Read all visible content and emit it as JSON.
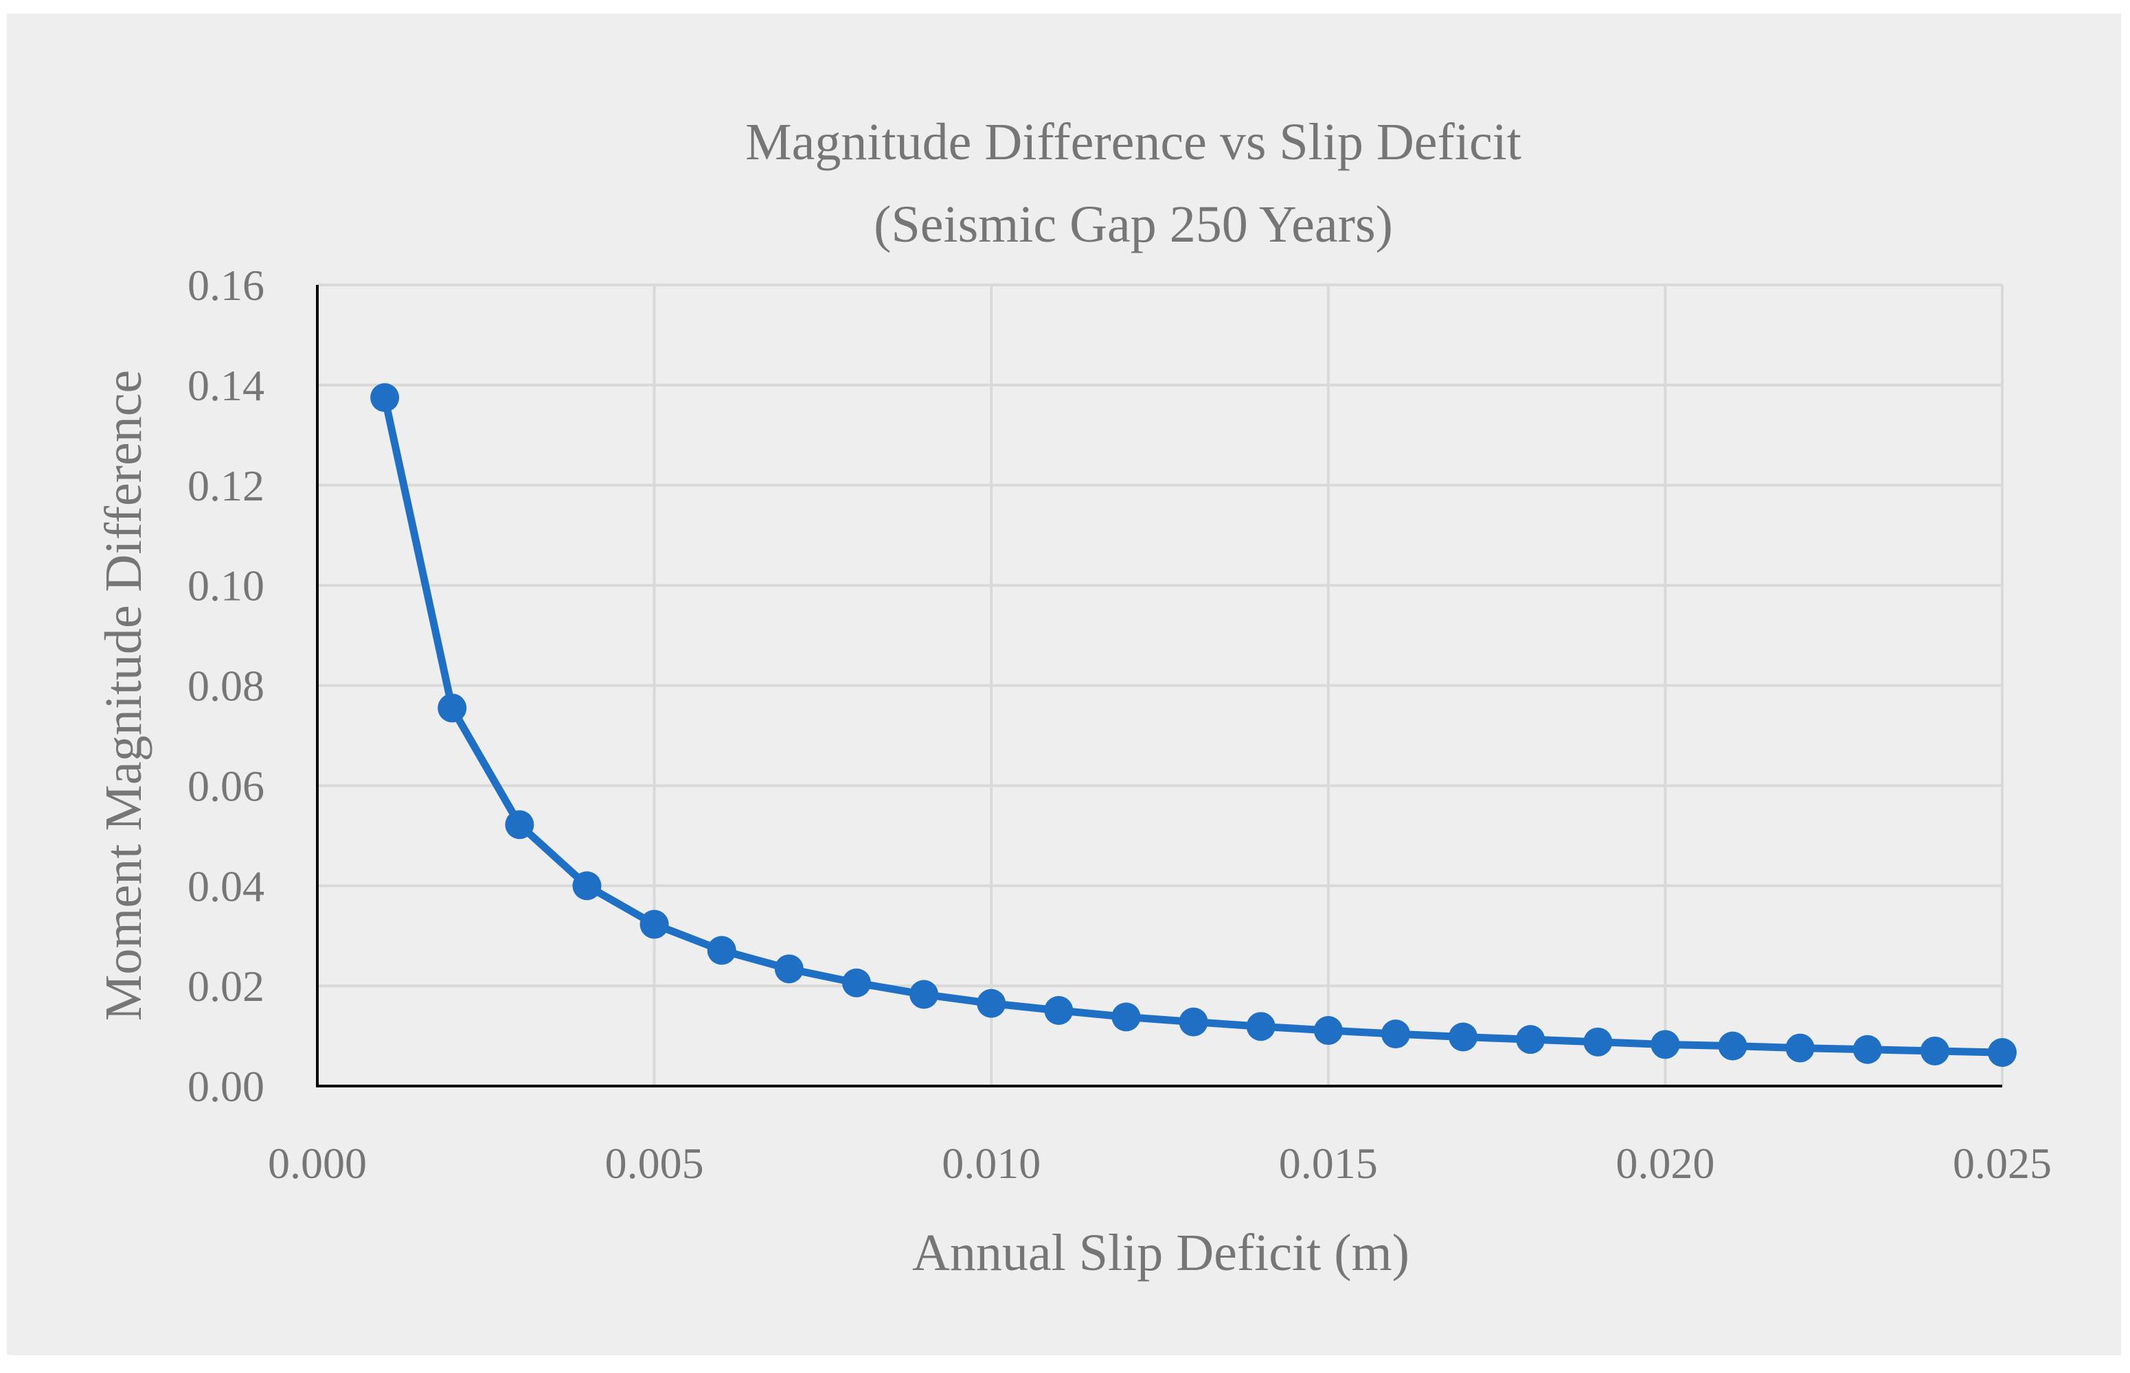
{
  "chart_data": {
    "type": "line",
    "title": "Magnitude Difference vs Slip Deficit",
    "subtitle": "(Seismic Gap 250 Years)",
    "xlabel": "Annual Slip Deficit (m)",
    "ylabel": "Moment Magnitude Difference",
    "xlim": [
      0.0,
      0.025
    ],
    "ylim": [
      0.0,
      0.16
    ],
    "x_ticks": [
      "0.000",
      "0.005",
      "0.010",
      "0.015",
      "0.020",
      "0.025"
    ],
    "y_ticks": [
      "0.00",
      "0.02",
      "0.04",
      "0.06",
      "0.08",
      "0.10",
      "0.12",
      "0.14",
      "0.16"
    ],
    "grid": true,
    "series": [
      {
        "name": "Moment Magnitude Difference",
        "color": "#1f6fc5",
        "x": [
          0.001,
          0.002,
          0.003,
          0.004,
          0.005,
          0.006,
          0.007,
          0.008,
          0.009,
          0.01,
          0.011,
          0.012,
          0.013,
          0.014,
          0.015,
          0.016,
          0.017,
          0.018,
          0.019,
          0.02,
          0.021,
          0.022,
          0.023,
          0.024,
          0.025
        ],
        "y": [
          0.1375,
          0.0755,
          0.0522,
          0.04,
          0.0323,
          0.0271,
          0.0234,
          0.0206,
          0.0183,
          0.0165,
          0.0151,
          0.0138,
          0.0128,
          0.0119,
          0.0111,
          0.0104,
          0.0098,
          0.0093,
          0.0088,
          0.0083,
          0.008,
          0.0076,
          0.0073,
          0.007,
          0.0067
        ]
      }
    ]
  }
}
